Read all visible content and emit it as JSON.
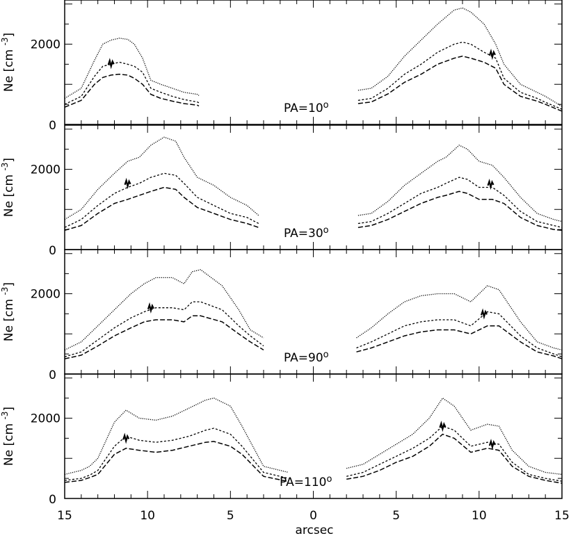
{
  "chart_data": {
    "type": "line",
    "xlabel": "arcsec",
    "ylabel": "Ne [cm",
    "ylabel_sup": "-3",
    "ylabel_close": "]",
    "x_tick_labels": [
      "15",
      "10",
      "5",
      "0",
      "5",
      "10",
      "15"
    ],
    "y_tick_labels": [
      "0",
      "2000"
    ],
    "ylim": [
      0,
      3100
    ],
    "x_axis_note": "distance from center in both directions (left side increases to the left)",
    "panels": [
      {
        "label": "PA=10",
        "deg": "o",
        "left": {
          "x": [
            15,
            14,
            13.2,
            12.7,
            12.2,
            11.7,
            11.2,
            10.8,
            10.3,
            9.8,
            9.2,
            8.5,
            7.8,
            7.0,
            6.9
          ],
          "upper": [
            650,
            900,
            1600,
            2000,
            2100,
            2150,
            2120,
            2000,
            1650,
            1100,
            1000,
            900,
            800,
            750,
            720
          ],
          "middle": [
            500,
            700,
            1200,
            1450,
            1500,
            1550,
            1500,
            1450,
            1300,
            900,
            800,
            700,
            620,
            560,
            540
          ],
          "lower": [
            430,
            600,
            1000,
            1170,
            1230,
            1250,
            1230,
            1150,
            1000,
            750,
            650,
            580,
            520,
            480,
            460
          ]
        },
        "right": {
          "x": [
            2.7,
            3.5,
            4.5,
            5.5,
            6.5,
            7.5,
            8.5,
            9.0,
            9.5,
            10.3,
            11.0,
            11.5,
            12.5,
            13.5,
            14.0,
            15.0
          ],
          "upper": [
            850,
            900,
            1200,
            1700,
            2100,
            2500,
            2850,
            2900,
            2800,
            2500,
            2000,
            1500,
            1000,
            800,
            700,
            450
          ],
          "middle": [
            600,
            650,
            900,
            1250,
            1500,
            1800,
            2000,
            2050,
            2000,
            1800,
            1650,
            1150,
            800,
            650,
            550,
            380
          ],
          "lower": [
            520,
            560,
            760,
            1050,
            1250,
            1500,
            1650,
            1700,
            1650,
            1550,
            1400,
            1000,
            700,
            580,
            500,
            330
          ]
        },
        "error_markers": [
          {
            "side": "left",
            "x": 12.2,
            "y": 1520
          },
          {
            "side": "right",
            "x": 10.8,
            "y": 1750
          }
        ]
      },
      {
        "label": "PA=30",
        "deg": "o",
        "left": {
          "x": [
            15,
            14,
            13,
            12,
            11.2,
            10.5,
            9.8,
            9.0,
            8.3,
            7.8,
            7.0,
            6.0,
            5.0,
            4.0,
            3.3
          ],
          "upper": [
            750,
            1000,
            1500,
            1900,
            2200,
            2300,
            2600,
            2800,
            2700,
            2300,
            1800,
            1600,
            1300,
            1100,
            850
          ],
          "middle": [
            550,
            750,
            1100,
            1400,
            1550,
            1650,
            1800,
            1900,
            1850,
            1650,
            1300,
            1100,
            900,
            800,
            650
          ],
          "lower": [
            480,
            600,
            900,
            1150,
            1250,
            1350,
            1450,
            1550,
            1500,
            1300,
            1050,
            900,
            750,
            650,
            550
          ]
        },
        "right": {
          "x": [
            2.7,
            3.5,
            4.5,
            5.5,
            6.5,
            7.5,
            8.0,
            8.8,
            9.3,
            10.0,
            10.8,
            11.5,
            12.5,
            13.5,
            14.5,
            15.0
          ],
          "upper": [
            850,
            900,
            1200,
            1600,
            1900,
            2200,
            2300,
            2600,
            2500,
            2200,
            2100,
            1800,
            1300,
            900,
            750,
            700
          ],
          "middle": [
            650,
            700,
            900,
            1150,
            1400,
            1550,
            1650,
            1800,
            1750,
            1550,
            1550,
            1350,
            950,
            700,
            600,
            550
          ],
          "lower": [
            550,
            600,
            750,
            950,
            1150,
            1300,
            1350,
            1450,
            1400,
            1250,
            1250,
            1150,
            800,
            600,
            500,
            480
          ]
        },
        "error_markers": [
          {
            "side": "left",
            "x": 11.2,
            "y": 1650
          },
          {
            "side": "right",
            "x": 10.7,
            "y": 1630
          }
        ]
      },
      {
        "label": "PA=90",
        "deg": "o",
        "left": {
          "x": [
            15,
            14,
            13,
            12,
            11,
            10.2,
            9.5,
            8.5,
            7.8,
            7.3,
            6.8,
            5.5,
            4.5,
            3.8,
            3.0
          ],
          "upper": [
            600,
            800,
            1200,
            1600,
            2000,
            2250,
            2400,
            2400,
            2250,
            2550,
            2600,
            2200,
            1600,
            1100,
            900
          ],
          "middle": [
            430,
            550,
            850,
            1150,
            1400,
            1550,
            1650,
            1650,
            1600,
            1800,
            1800,
            1600,
            1200,
            950,
            700
          ],
          "lower": [
            380,
            470,
            700,
            950,
            1150,
            1300,
            1350,
            1350,
            1300,
            1450,
            1450,
            1300,
            1000,
            800,
            600
          ]
        },
        "right": {
          "x": [
            2.6,
            3.5,
            4.5,
            5.5,
            6.5,
            7.5,
            8.5,
            9.5,
            10.5,
            11.2,
            12.5,
            13.5,
            14.5,
            15.0
          ],
          "upper": [
            900,
            1150,
            1500,
            1800,
            1950,
            2000,
            2000,
            1800,
            2200,
            2100,
            1300,
            800,
            650,
            600
          ],
          "middle": [
            650,
            800,
            1000,
            1200,
            1300,
            1350,
            1350,
            1200,
            1550,
            1500,
            950,
            650,
            500,
            430
          ],
          "lower": [
            550,
            650,
            800,
            950,
            1050,
            1100,
            1100,
            1000,
            1200,
            1200,
            800,
            550,
            450,
            380
          ]
        },
        "error_markers": [
          {
            "side": "left",
            "x": 9.8,
            "y": 1650
          },
          {
            "side": "right",
            "x": 10.3,
            "y": 1500
          }
        ]
      },
      {
        "label": "PA=110",
        "deg": "o",
        "left": {
          "x": [
            15,
            14,
            13.5,
            13,
            12,
            11.3,
            10.5,
            9.5,
            8.5,
            7.5,
            6.5,
            6.0,
            5.0,
            4.3,
            3.0,
            1.5
          ],
          "upper": [
            600,
            700,
            800,
            1000,
            1900,
            2200,
            2000,
            1950,
            2050,
            2250,
            2450,
            2500,
            2300,
            1800,
            800,
            650
          ],
          "middle": [
            450,
            500,
            580,
            700,
            1300,
            1550,
            1450,
            1400,
            1450,
            1550,
            1700,
            1750,
            1600,
            1300,
            650,
            500
          ],
          "lower": [
            400,
            450,
            520,
            600,
            1100,
            1250,
            1200,
            1150,
            1200,
            1300,
            1400,
            1420,
            1300,
            1100,
            550,
            420
          ]
        },
        "right": {
          "x": [
            2.0,
            3.0,
            4.0,
            5.0,
            6.0,
            7.0,
            7.8,
            8.5,
            9.5,
            10.5,
            11.2,
            12.0,
            13.0,
            14.0,
            15.0
          ],
          "upper": [
            750,
            850,
            1100,
            1350,
            1600,
            2000,
            2500,
            2300,
            1700,
            1850,
            1800,
            1200,
            800,
            650,
            600
          ],
          "middle": [
            550,
            650,
            850,
            1050,
            1250,
            1500,
            1800,
            1700,
            1300,
            1400,
            1350,
            900,
            600,
            500,
            430
          ],
          "lower": [
            480,
            550,
            700,
            900,
            1050,
            1300,
            1600,
            1500,
            1150,
            1250,
            1200,
            800,
            550,
            450,
            380
          ]
        },
        "error_markers": [
          {
            "side": "left",
            "x": 11.3,
            "y": 1500
          },
          {
            "side": "right",
            "x": 7.8,
            "y": 1800
          },
          {
            "side": "right",
            "x": 10.8,
            "y": 1350
          }
        ]
      }
    ]
  }
}
